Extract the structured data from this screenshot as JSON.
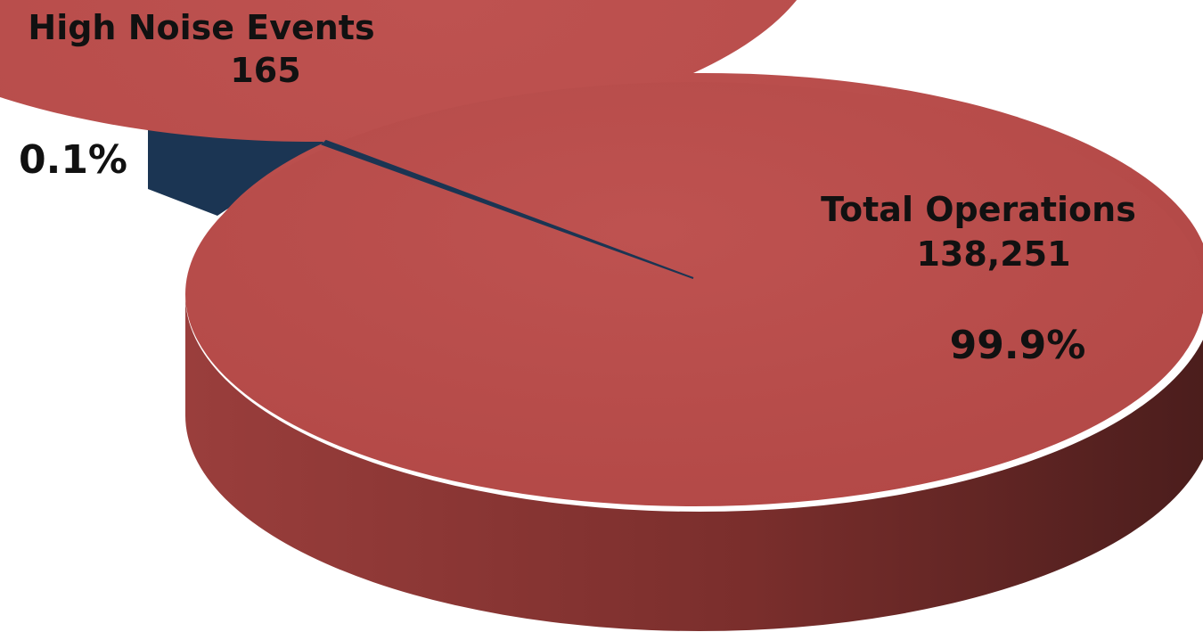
{
  "chart_data": {
    "type": "pie",
    "title": "",
    "slices": [
      {
        "label": "Total Operations",
        "value": 138251,
        "value_label": "138,251",
        "percent_label": "99.9%",
        "color": "#B84C4A",
        "side_color": "#7A2E2C"
      },
      {
        "label": "High Noise Events",
        "value": 165,
        "value_label": "165",
        "percent_label": "0.1%",
        "color": "#1B3553",
        "side_color": "#10233A"
      }
    ],
    "exploded_slice": "High Noise Events",
    "style": "3d-pie",
    "legend": "none"
  }
}
